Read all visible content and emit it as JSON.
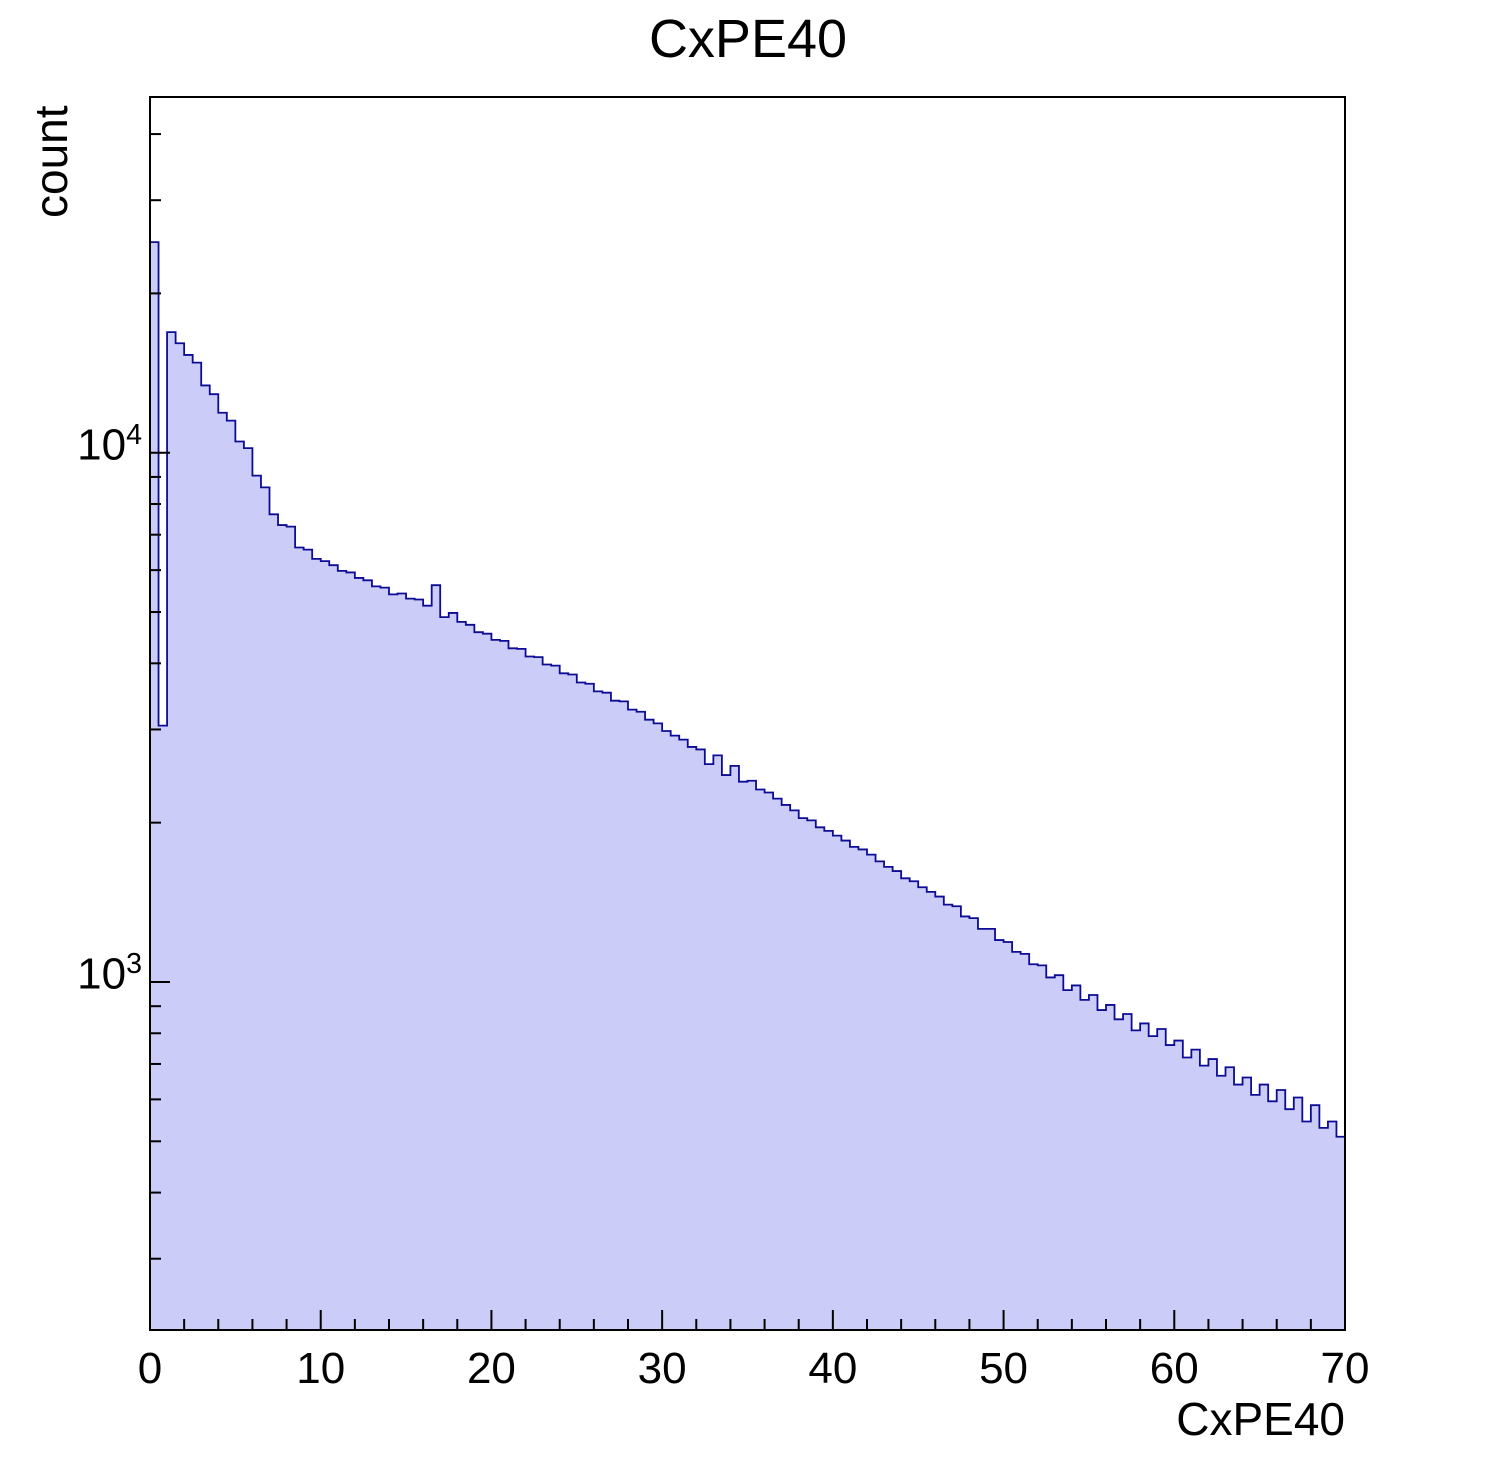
{
  "page": {
    "background_color": "#ffffff",
    "frame_color": "#000000"
  },
  "chart_data": {
    "type": "bar",
    "style": "step-histogram-filled",
    "title": "CxPE40",
    "xlabel": "CxPE40",
    "ylabel": "count",
    "x_range": [
      0,
      70
    ],
    "bin_width": 0.5,
    "y_scale": "log",
    "y_range": [
      220,
      47000
    ],
    "grid": "off",
    "legend": "none",
    "fill_color": "#ccccf8",
    "line_color": "#0c0c94",
    "x_major_ticks": [
      0,
      10,
      20,
      30,
      40,
      50,
      60,
      70
    ],
    "x_tick_labels": [
      "0",
      "10",
      "20",
      "30",
      "40",
      "50",
      "60",
      "70"
    ],
    "x_minor_step": 2,
    "y_major_ticks": [
      1000,
      10000
    ],
    "y_tick_labels": [
      "10^3",
      "10^4"
    ],
    "values": [
      25000,
      3050,
      16900,
      16100,
      15300,
      14800,
      13400,
      12900,
      11900,
      11500,
      10500,
      10200,
      9050,
      8600,
      7650,
      7300,
      7250,
      6620,
      6560,
      6300,
      6240,
      6130,
      5980,
      5940,
      5800,
      5740,
      5590,
      5560,
      5400,
      5420,
      5300,
      5280,
      5140,
      5620,
      4890,
      4980,
      4790,
      4730,
      4580,
      4550,
      4430,
      4410,
      4270,
      4260,
      4120,
      4110,
      3980,
      3960,
      3830,
      3810,
      3680,
      3660,
      3540,
      3520,
      3400,
      3390,
      3270,
      3240,
      3130,
      3080,
      2980,
      2920,
      2870,
      2780,
      2750,
      2580,
      2680,
      2460,
      2560,
      2390,
      2400,
      2310,
      2280,
      2220,
      2160,
      2110,
      2040,
      2020,
      1960,
      1930,
      1890,
      1850,
      1800,
      1780,
      1740,
      1690,
      1650,
      1620,
      1570,
      1550,
      1510,
      1480,
      1450,
      1400,
      1390,
      1330,
      1320,
      1260,
      1260,
      1200,
      1190,
      1140,
      1130,
      1080,
      1075,
      1020,
      1030,
      965,
      985,
      925,
      945,
      885,
      905,
      850,
      870,
      810,
      835,
      790,
      815,
      760,
      775,
      720,
      745,
      695,
      715,
      665,
      690,
      640,
      660,
      612,
      640,
      595,
      625,
      575,
      605,
      545,
      585,
      530,
      545,
      510
    ]
  }
}
